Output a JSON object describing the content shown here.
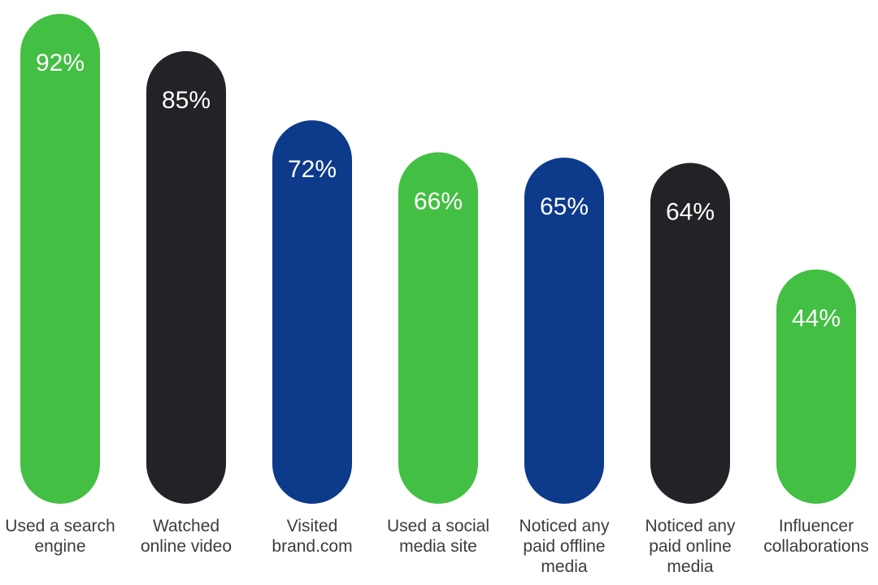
{
  "chart_data": {
    "type": "bar",
    "title": "",
    "xlabel": "",
    "ylabel": "",
    "ylim": [
      0,
      92
    ],
    "grid": false,
    "legend": "none",
    "categories": [
      "Used a search engine",
      "Watched online video",
      "Visited brand.com",
      "Used a social media site",
      "Noticed any paid offline media",
      "Noticed any paid online media",
      "Influencer collaborations"
    ],
    "category_lines": [
      [
        "Used a search",
        "engine"
      ],
      [
        "Watched",
        "online video"
      ],
      [
        "Visited",
        "brand.com"
      ],
      [
        "Used a social",
        "media site"
      ],
      [
        "Noticed any",
        "paid offline",
        "media"
      ],
      [
        "Noticed any",
        "paid online",
        "media"
      ],
      [
        "Influencer",
        "collaborations"
      ]
    ],
    "values": [
      92,
      85,
      72,
      66,
      65,
      64,
      44
    ],
    "value_labels": [
      "92%",
      "85%",
      "72%",
      "66%",
      "65%",
      "64%",
      "44%"
    ],
    "bar_colors": [
      "#43bf43",
      "#222326",
      "#0d3a8b",
      "#43bf43",
      "#0d3a8b",
      "#222326",
      "#43bf43"
    ]
  }
}
